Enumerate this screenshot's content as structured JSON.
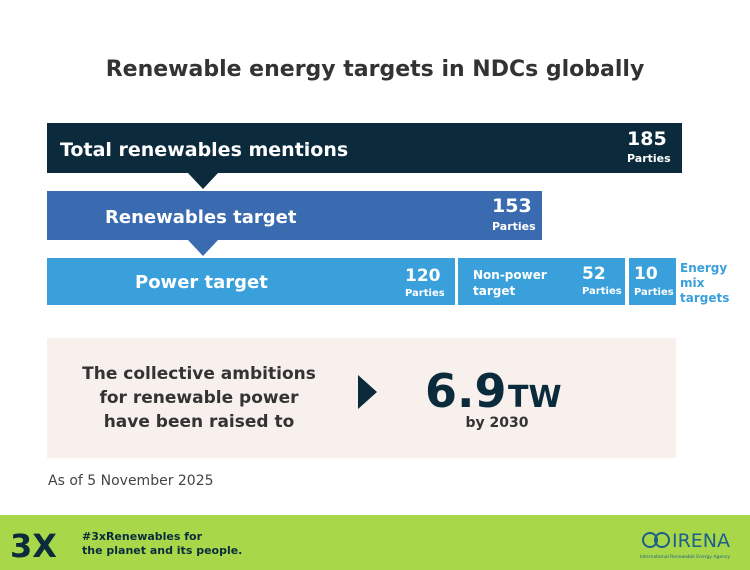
{
  "title": "Renewable energy targets in NDCs globally",
  "rows": [
    {
      "label": "Total renewables mentions",
      "value": 185,
      "unit": "Parties"
    },
    {
      "label": "Renewables target",
      "value": 153,
      "unit": "Parties"
    },
    {
      "label": "Power target",
      "value": 120,
      "unit": "Parties"
    }
  ],
  "segments": [
    {
      "label": "Non-power target",
      "value": 52,
      "unit": "Parties"
    },
    {
      "label": "Energy mix targets",
      "value": 10,
      "unit": "Parties"
    }
  ],
  "callout": {
    "lines": [
      "The collective ambitions",
      "for renewable power",
      "have been raised to"
    ],
    "value": "6.9",
    "unit": "TW",
    "sub": "by 2030"
  },
  "note": "As of 5 November 2025",
  "footer": {
    "logo": "3X",
    "lines": [
      "#3xRenewables for",
      "the planet and its people."
    ],
    "brand": "IRENA",
    "brand_sub": "International Renewable Energy Agency"
  }
}
